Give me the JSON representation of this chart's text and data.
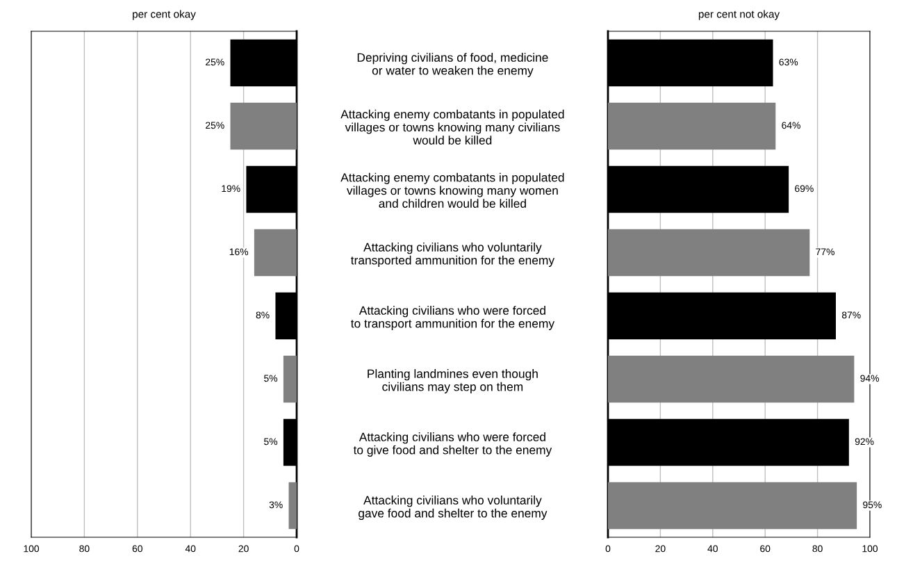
{
  "chart_data": [
    {
      "type": "bar",
      "orientation": "horizontal",
      "title": "per cent okay",
      "tick_labels": "x",
      "grid": "x",
      "xlim": [
        100,
        0
      ],
      "xticks": [
        100,
        80,
        60,
        40,
        20,
        0
      ],
      "categories": [
        null,
        null,
        null,
        null,
        null,
        null,
        null,
        null
      ],
      "values": [
        25,
        25,
        19,
        16,
        8,
        5,
        5,
        3
      ],
      "colors": [
        "#000000",
        "#808080",
        "#000000",
        "#808080",
        "#000000",
        "#808080",
        "#000000",
        "#808080"
      ],
      "value_labels": [
        "25%",
        "25%",
        "19%",
        "16%",
        "8%",
        "5%",
        "5%",
        "3%"
      ]
    },
    {
      "type": "bar",
      "orientation": "horizontal",
      "title": "per cent not okay",
      "grid": "x",
      "xlim": [
        0,
        100
      ],
      "xticks": [
        0,
        20,
        40,
        60,
        80,
        100
      ],
      "categories": [
        "Depriving civilians of food, medicine\nor water to weaken the enemy",
        "Attacking enemy combatants in populated\nvillages or towns knowing many civilians\nwould be killed",
        "Attacking enemy combatants in populated\nvillages or towns knowing many women\nand children would be killed",
        "Attacking civilians who voluntarily\ntransported ammunition for the enemy",
        "Attacking civilians who were forced\nto transport ammunition for the enemy",
        "Planting landmines even though\ncivilians may step on them",
        "Attacking civilians who were forced\nto give food and shelter to the enemy",
        "Attacking civilians who voluntarily\ngave food and shelter to the enemy"
      ],
      "values": [
        63,
        64,
        69,
        77,
        87,
        94,
        92,
        95
      ],
      "colors": [
        "#000000",
        "#808080",
        "#000000",
        "#808080",
        "#000000",
        "#808080",
        "#000000",
        "#808080"
      ],
      "value_labels": [
        "63%",
        "64%",
        "69%",
        "77%",
        "87%",
        "94%",
        "92%",
        "95%"
      ]
    }
  ]
}
